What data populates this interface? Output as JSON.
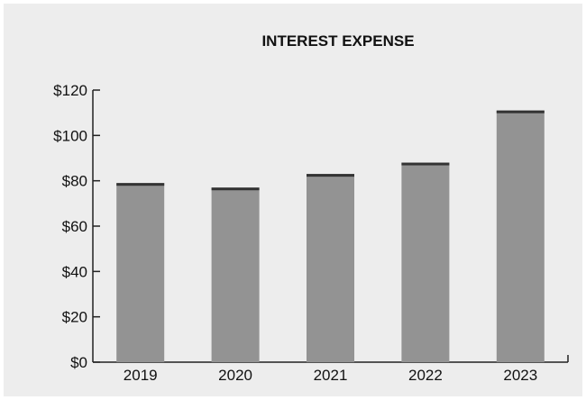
{
  "chart_data": {
    "type": "bar",
    "title": "INTEREST EXPENSE",
    "categories": [
      "2019",
      "2020",
      "2021",
      "2022",
      "2023"
    ],
    "values": [
      79,
      77,
      83,
      88,
      111
    ],
    "xlabel": "",
    "ylabel": "",
    "ylim": [
      0,
      120
    ],
    "yticks": [
      0,
      20,
      40,
      60,
      80,
      100,
      120
    ],
    "ytick_labels": [
      "$0",
      "$20",
      "$40",
      "$60",
      "$80",
      "$100",
      "$120"
    ],
    "grid": false,
    "colors": {
      "bar": "#939393",
      "bar_cap": "#333333",
      "axis": "#222222",
      "background": "#ededed"
    }
  }
}
